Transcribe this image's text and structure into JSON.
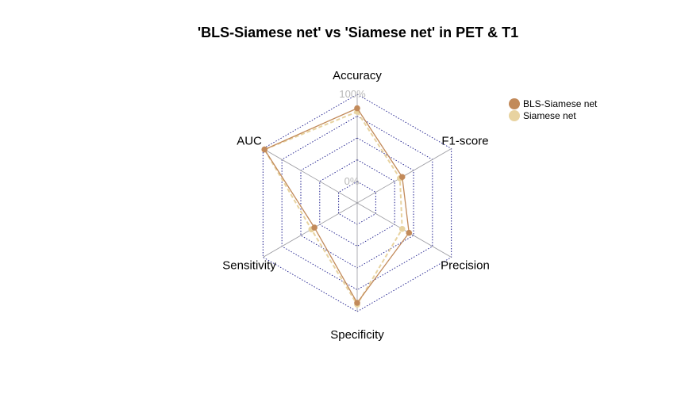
{
  "chart_data": {
    "type": "radar",
    "title": "'BLS-Siamese net' vs 'Siamese net' in PET & T1",
    "axes": [
      "Accuracy",
      "F1-score",
      "Precision",
      "Specificity",
      "Sensitivity",
      "AUC"
    ],
    "range": [
      0,
      100
    ],
    "ring_labels": {
      "max": "100%",
      "min": "0%"
    },
    "series": [
      {
        "name": "BLS-Siamese net",
        "color": "#c28a5a",
        "values": [
          84,
          35,
          44,
          90,
          32,
          98
        ]
      },
      {
        "name": "Siamese net",
        "color": "#e8d3a0",
        "values": [
          80,
          32,
          35,
          92,
          36,
          98
        ]
      }
    ],
    "grid_color": "#1a1a8c",
    "legend_position": "top-right"
  }
}
